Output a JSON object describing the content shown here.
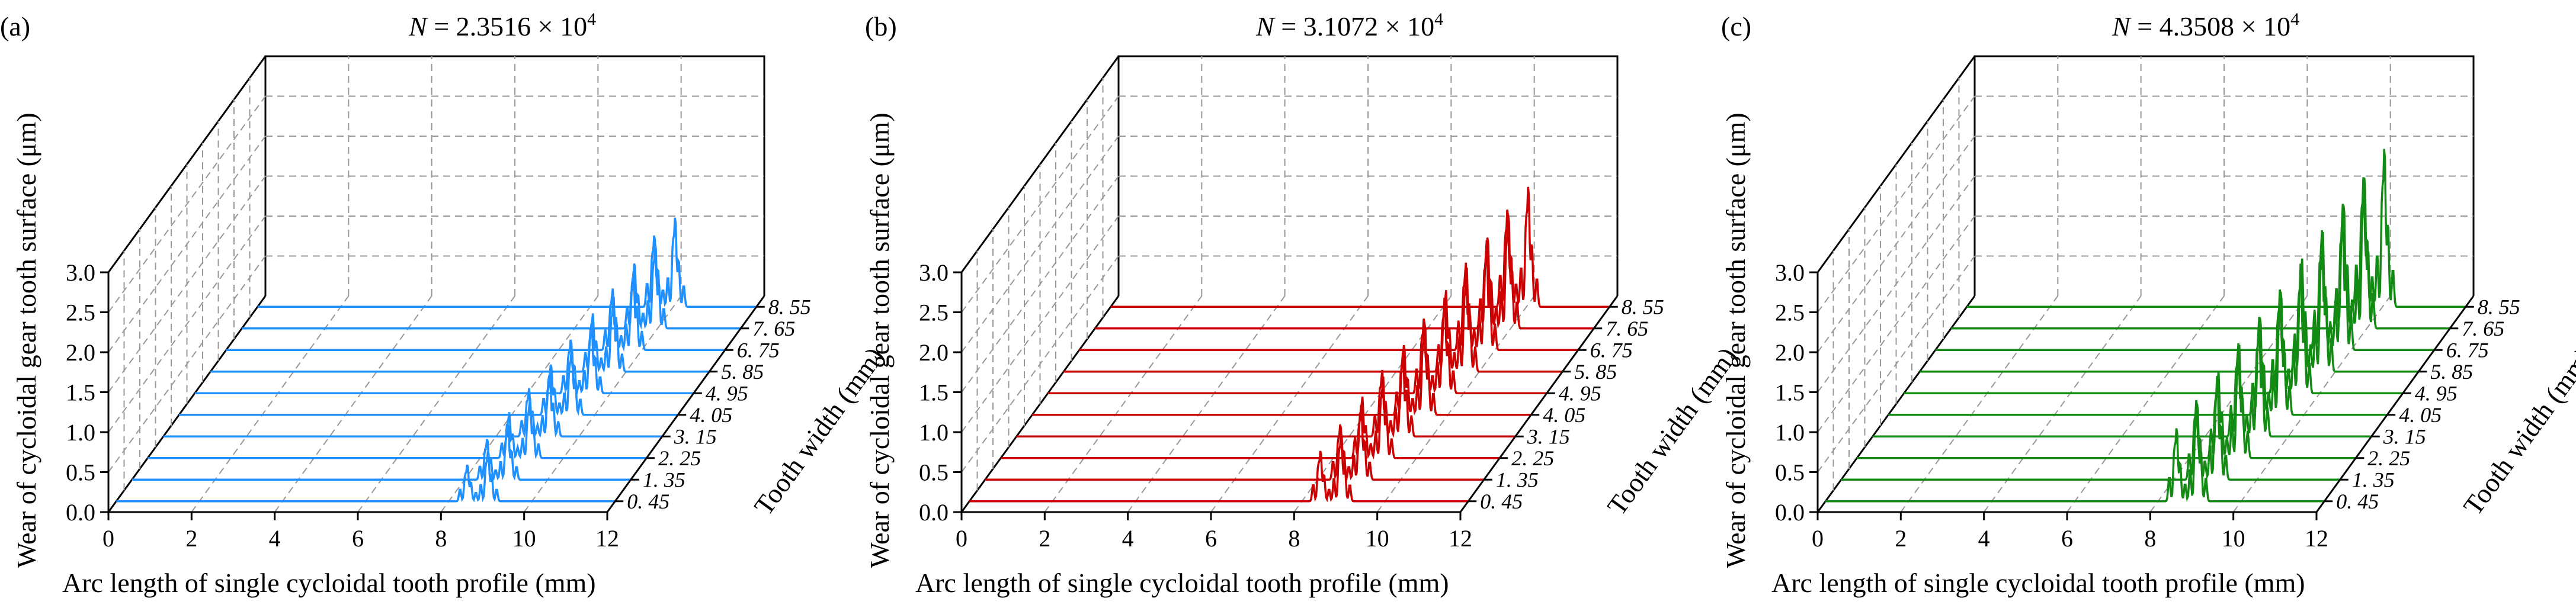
{
  "figure": {
    "panels": [
      {
        "label": "(a)",
        "title_var": "N",
        "title_rest": " = 2.3516 × 10",
        "title_exp": "4",
        "color": "#1e90ff"
      },
      {
        "label": "(b)",
        "title_var": "N",
        "title_rest": " = 3.1072 × 10",
        "title_exp": "4",
        "color": "#cc0000"
      },
      {
        "label": "(c)",
        "title_var": "N",
        "title_rest": " = 4.3508 × 10",
        "title_exp": "4",
        "color": "#138a13"
      }
    ]
  },
  "chart_data": [
    {
      "type": "line3d-waterfall",
      "title": "N = 2.3516 × 10^4",
      "xlabel": "Arc length of single cycloidal tooth profile (mm)",
      "ylabel": "Tooth width (mm)",
      "zlabel": "Wear of cycloidal gear tooth surface (μm)",
      "x_ticks": [
        "0",
        "2",
        "4",
        "6",
        "8",
        "10",
        "12"
      ],
      "y_ticks": [
        "0. 45",
        "1. 35",
        "2. 25",
        "3. 15",
        "4. 05",
        "4. 95",
        "5. 85",
        "6. 75",
        "7. 65",
        "8. 55"
      ],
      "z_ticks": [
        "0.0",
        "0.5",
        "1.0",
        "1.5",
        "2.0",
        "2.5",
        "3.0"
      ],
      "xlim": [
        0,
        12
      ],
      "zlim": [
        0,
        3
      ],
      "series": [
        {
          "name": "0.45",
          "peaks": [
            {
              "x": 8.45,
              "z": 0.45
            },
            {
              "x": 8.95,
              "z": 0.62
            }
          ]
        },
        {
          "name": "1.35",
          "peaks": [
            {
              "x": 8.55,
              "z": 0.5
            },
            {
              "x": 9.05,
              "z": 0.68
            }
          ]
        },
        {
          "name": "2.25",
          "peaks": [
            {
              "x": 8.7,
              "z": 0.55
            },
            {
              "x": 9.2,
              "z": 0.72
            }
          ]
        },
        {
          "name": "3.15",
          "peaks": [
            {
              "x": 8.8,
              "z": 0.58
            },
            {
              "x": 9.3,
              "z": 0.76
            }
          ]
        },
        {
          "name": "4.05",
          "peaks": [
            {
              "x": 8.95,
              "z": 0.62
            },
            {
              "x": 9.45,
              "z": 0.82
            }
          ]
        },
        {
          "name": "4.95",
          "peaks": [
            {
              "x": 9.05,
              "z": 0.66
            },
            {
              "x": 9.55,
              "z": 0.86
            }
          ]
        },
        {
          "name": "5.85",
          "peaks": [
            {
              "x": 9.2,
              "z": 0.7
            },
            {
              "x": 9.7,
              "z": 0.9
            }
          ]
        },
        {
          "name": "6.75",
          "peaks": [
            {
              "x": 9.3,
              "z": 0.74
            },
            {
              "x": 9.8,
              "z": 0.95
            }
          ]
        },
        {
          "name": "7.65",
          "peaks": [
            {
              "x": 9.45,
              "z": 0.8
            },
            {
              "x": 9.95,
              "z": 1.05
            }
          ]
        },
        {
          "name": "8.55",
          "peaks": [
            {
              "x": 9.55,
              "z": 0.88
            },
            {
              "x": 10.05,
              "z": 1.1
            }
          ]
        }
      ]
    },
    {
      "type": "line3d-waterfall",
      "title": "N = 3.1072 × 10^4",
      "xlabel": "Arc length of single cycloidal tooth profile (mm)",
      "ylabel": "Tooth width (mm)",
      "zlabel": "Wear of cycloidal gear tooth surface (μm)",
      "x_ticks": [
        "0",
        "2",
        "4",
        "6",
        "8",
        "10",
        "12"
      ],
      "y_ticks": [
        "0. 45",
        "1. 35",
        "2. 25",
        "3. 15",
        "4. 05",
        "4. 95",
        "5. 85",
        "6. 75",
        "7. 65",
        "8. 55"
      ],
      "z_ticks": [
        "0.0",
        "0.5",
        "1.0",
        "1.5",
        "2.0",
        "2.5",
        "3.0"
      ],
      "xlim": [
        0,
        12
      ],
      "zlim": [
        0,
        3
      ],
      "series": [
        {
          "name": "0.45",
          "peaks": [
            {
              "x": 8.45,
              "z": 0.62
            },
            {
              "x": 8.95,
              "z": 0.85
            }
          ]
        },
        {
          "name": "1.35",
          "peaks": [
            {
              "x": 8.55,
              "z": 0.68
            },
            {
              "x": 9.05,
              "z": 0.92
            }
          ]
        },
        {
          "name": "2.25",
          "peaks": [
            {
              "x": 8.7,
              "z": 0.74
            },
            {
              "x": 9.2,
              "z": 0.98
            }
          ]
        },
        {
          "name": "3.15",
          "peaks": [
            {
              "x": 8.8,
              "z": 0.8
            },
            {
              "x": 9.3,
              "z": 1.05
            }
          ]
        },
        {
          "name": "4.05",
          "peaks": [
            {
              "x": 8.95,
              "z": 0.86
            },
            {
              "x": 9.45,
              "z": 1.12
            }
          ]
        },
        {
          "name": "4.95",
          "peaks": [
            {
              "x": 9.05,
              "z": 0.92
            },
            {
              "x": 9.55,
              "z": 1.18
            }
          ]
        },
        {
          "name": "5.85",
          "peaks": [
            {
              "x": 9.2,
              "z": 0.98
            },
            {
              "x": 9.7,
              "z": 1.25
            }
          ]
        },
        {
          "name": "6.75",
          "peaks": [
            {
              "x": 9.3,
              "z": 1.05
            },
            {
              "x": 9.8,
              "z": 1.32
            }
          ]
        },
        {
          "name": "7.65",
          "peaks": [
            {
              "x": 9.45,
              "z": 1.12
            },
            {
              "x": 9.95,
              "z": 1.4
            }
          ]
        },
        {
          "name": "8.55",
          "peaks": [
            {
              "x": 9.55,
              "z": 1.2
            },
            {
              "x": 10.05,
              "z": 1.48
            }
          ]
        }
      ]
    },
    {
      "type": "line3d-waterfall",
      "title": "N = 4.3508 × 10^4",
      "xlabel": "Arc length of single cycloidal tooth profile (mm)",
      "ylabel": "Tooth width (mm)",
      "zlabel": "Wear of cycloidal gear tooth surface (μm)",
      "x_ticks": [
        "0",
        "2",
        "4",
        "6",
        "8",
        "10",
        "12"
      ],
      "y_ticks": [
        "0. 45",
        "1. 35",
        "2. 25",
        "3. 15",
        "4. 05",
        "4. 95",
        "5. 85",
        "6. 75",
        "7. 65",
        "8. 55"
      ],
      "z_ticks": [
        "0.0",
        "0.5",
        "1.0",
        "1.5",
        "2.0",
        "2.5",
        "3.0"
      ],
      "xlim": [
        0,
        12
      ],
      "zlim": [
        0,
        3
      ],
      "series": [
        {
          "name": "0.45",
          "peaks": [
            {
              "x": 8.45,
              "z": 0.9
            },
            {
              "x": 8.95,
              "z": 1.2
            }
          ]
        },
        {
          "name": "1.35",
          "peaks": [
            {
              "x": 8.55,
              "z": 0.98
            },
            {
              "x": 9.05,
              "z": 1.28
            }
          ]
        },
        {
          "name": "2.25",
          "peaks": [
            {
              "x": 8.7,
              "z": 1.05
            },
            {
              "x": 9.2,
              "z": 1.36
            }
          ]
        },
        {
          "name": "3.15",
          "peaks": [
            {
              "x": 8.8,
              "z": 1.12
            },
            {
              "x": 9.3,
              "z": 1.44
            }
          ]
        },
        {
          "name": "4.05",
          "peaks": [
            {
              "x": 8.95,
              "z": 1.2
            },
            {
              "x": 9.45,
              "z": 1.52
            }
          ]
        },
        {
          "name": "4.95",
          "peaks": [
            {
              "x": 9.05,
              "z": 1.28
            },
            {
              "x": 9.55,
              "z": 1.6
            }
          ]
        },
        {
          "name": "5.85",
          "peaks": [
            {
              "x": 9.2,
              "z": 1.36
            },
            {
              "x": 9.7,
              "z": 1.68
            }
          ]
        },
        {
          "name": "6.75",
          "peaks": [
            {
              "x": 9.3,
              "z": 1.44
            },
            {
              "x": 9.8,
              "z": 1.76
            }
          ]
        },
        {
          "name": "7.65",
          "peaks": [
            {
              "x": 9.45,
              "z": 1.52
            },
            {
              "x": 9.95,
              "z": 1.86
            }
          ]
        },
        {
          "name": "8.55",
          "peaks": [
            {
              "x": 9.55,
              "z": 1.6
            },
            {
              "x": 10.05,
              "z": 1.95
            }
          ]
        }
      ]
    }
  ]
}
